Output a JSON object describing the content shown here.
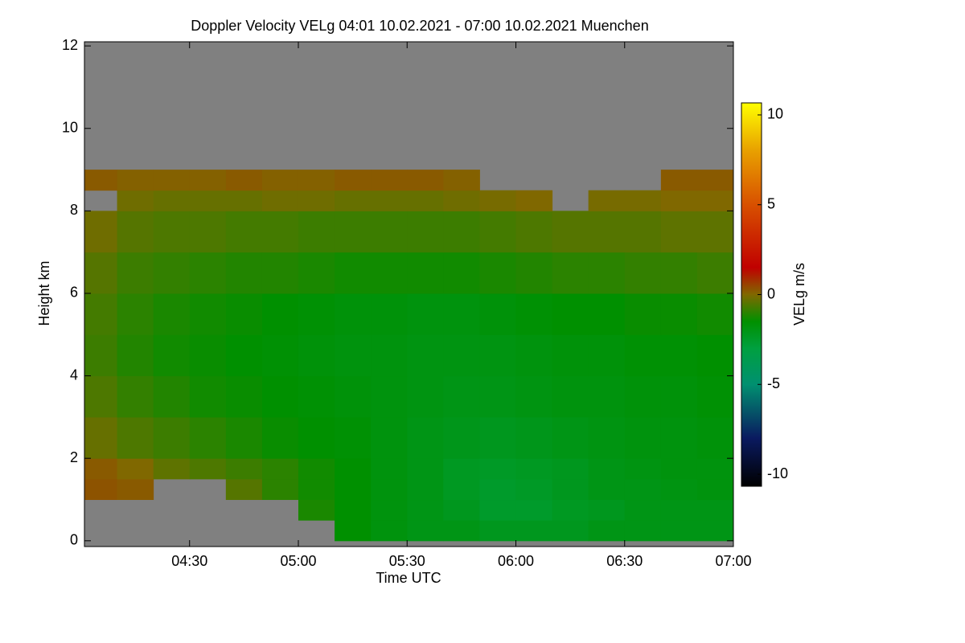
{
  "chart_data": {
    "type": "heatmap",
    "title": "Doppler Velocity VELg   04:01 10.02.2021 - 07:00 10.02.2021 Muenchen",
    "x_label": "Time UTC",
    "y_label": "Height km",
    "colorbar_label": "VELg m/s",
    "xlim": [
      4.0167,
      7.0
    ],
    "ylim": [
      -0.14,
      12.1
    ],
    "xticks": [
      {
        "value": 4.5,
        "label": "04:30"
      },
      {
        "value": 5.0,
        "label": "05:00"
      },
      {
        "value": 5.5,
        "label": "05:30"
      },
      {
        "value": 6.0,
        "label": "06:00"
      },
      {
        "value": 6.5,
        "label": "06:30"
      },
      {
        "value": 7.0,
        "label": "07:00"
      }
    ],
    "yticks": [
      0,
      2,
      4,
      6,
      8,
      10,
      12
    ],
    "xbins": [
      4.0167,
      4.1667,
      4.3333,
      4.5,
      4.6667,
      4.8333,
      5.0,
      5.1667,
      5.3333,
      5.5,
      5.6667,
      5.8333,
      6.0,
      6.1667,
      6.3333,
      6.5,
      6.6667,
      6.8333,
      7.0
    ],
    "ybins": [
      0,
      0.5,
      1,
      1.5,
      2,
      3,
      4,
      5,
      6,
      7,
      8,
      8.5,
      9,
      12
    ],
    "values": [
      [
        null,
        null,
        null,
        null,
        null,
        null,
        null,
        -1.5,
        -1.8,
        -2,
        -2,
        -2.2,
        -2.2,
        -2.2,
        -2,
        -2,
        -2,
        -2
      ],
      [
        null,
        null,
        null,
        null,
        null,
        null,
        -1.2,
        -1.5,
        -1.8,
        -2,
        -2.2,
        -2.5,
        -2.5,
        -2.3,
        -2.2,
        -2,
        -2,
        -2
      ],
      [
        0.3,
        0.2,
        null,
        null,
        -0.5,
        -1,
        -1.3,
        -1.5,
        -1.8,
        -2,
        -2.3,
        -2.5,
        -2.4,
        -2.2,
        -2,
        -2,
        -1.9,
        -1.8
      ],
      [
        0.2,
        0,
        -0.4,
        -0.6,
        -0.8,
        -1,
        -1.3,
        -1.5,
        -1.8,
        -2,
        -2.3,
        -2.4,
        -2.3,
        -2.2,
        -2,
        -1.9,
        -1.8,
        -1.8
      ],
      [
        -0.3,
        -0.6,
        -0.8,
        -1,
        -1.2,
        -1.4,
        -1.5,
        -1.6,
        -1.8,
        -2,
        -2.1,
        -2.2,
        -2.1,
        -2,
        -1.9,
        -1.8,
        -1.8,
        -1.7
      ],
      [
        -0.6,
        -0.9,
        -1.1,
        -1.3,
        -1.4,
        -1.5,
        -1.6,
        -1.7,
        -1.8,
        -1.9,
        -2,
        -2,
        -1.9,
        -1.8,
        -1.8,
        -1.7,
        -1.7,
        -1.6
      ],
      [
        -0.8,
        -1.1,
        -1.3,
        -1.4,
        -1.5,
        -1.6,
        -1.7,
        -1.8,
        -1.8,
        -1.9,
        -1.9,
        -1.9,
        -1.8,
        -1.7,
        -1.7,
        -1.6,
        -1.6,
        -1.5
      ],
      [
        -0.7,
        -1,
        -1.2,
        -1.3,
        -1.4,
        -1.5,
        -1.6,
        -1.7,
        -1.7,
        -1.8,
        -1.8,
        -1.7,
        -1.6,
        -1.5,
        -1.5,
        -1.4,
        -1.4,
        -1.3
      ],
      [
        -0.5,
        -0.8,
        -0.9,
        -1,
        -1.1,
        -1.1,
        -1.2,
        -1.3,
        -1.3,
        -1.3,
        -1.3,
        -1.2,
        -1.1,
        -1,
        -1,
        -0.9,
        -0.9,
        -0.8
      ],
      [
        -0.2,
        -0.5,
        -0.6,
        -0.6,
        -0.7,
        -0.7,
        -0.8,
        -0.8,
        -0.8,
        -0.8,
        -0.8,
        -0.7,
        -0.6,
        -0.5,
        -0.5,
        -0.5,
        -0.4,
        -0.4
      ],
      [
        null,
        -0.2,
        -0.3,
        -0.3,
        -0.3,
        -0.2,
        -0.2,
        -0.3,
        -0.3,
        -0.3,
        -0.2,
        -0.1,
        0,
        null,
        -0.1,
        -0.1,
        0,
        0
      ],
      [
        0.2,
        0.1,
        0.1,
        0.1,
        0.2,
        0.1,
        0.1,
        0.2,
        0.2,
        0.2,
        0.1,
        null,
        null,
        null,
        null,
        null,
        0.2,
        0.2
      ],
      [
        null,
        null,
        null,
        null,
        null,
        null,
        null,
        null,
        null,
        null,
        null,
        null,
        null,
        null,
        null,
        null,
        null,
        null
      ]
    ],
    "nodata_color": "#808080",
    "grid": false,
    "zlim": [
      -10.67,
      10.67
    ],
    "zticks": [
      -10,
      -5,
      0,
      5,
      10
    ],
    "colormap": [
      {
        "value": -10.67,
        "color": "#000000"
      },
      {
        "value": -8,
        "color": "#0a1a60"
      },
      {
        "value": -5,
        "color": "#009070"
      },
      {
        "value": -3,
        "color": "#00a040"
      },
      {
        "value": -1.5,
        "color": "#009000"
      },
      {
        "value": 0,
        "color": "#806800"
      },
      {
        "value": 1.5,
        "color": "#c00000"
      },
      {
        "value": 5,
        "color": "#d85000"
      },
      {
        "value": 8,
        "color": "#e8a000"
      },
      {
        "value": 10.67,
        "color": "#ffff00"
      }
    ]
  }
}
